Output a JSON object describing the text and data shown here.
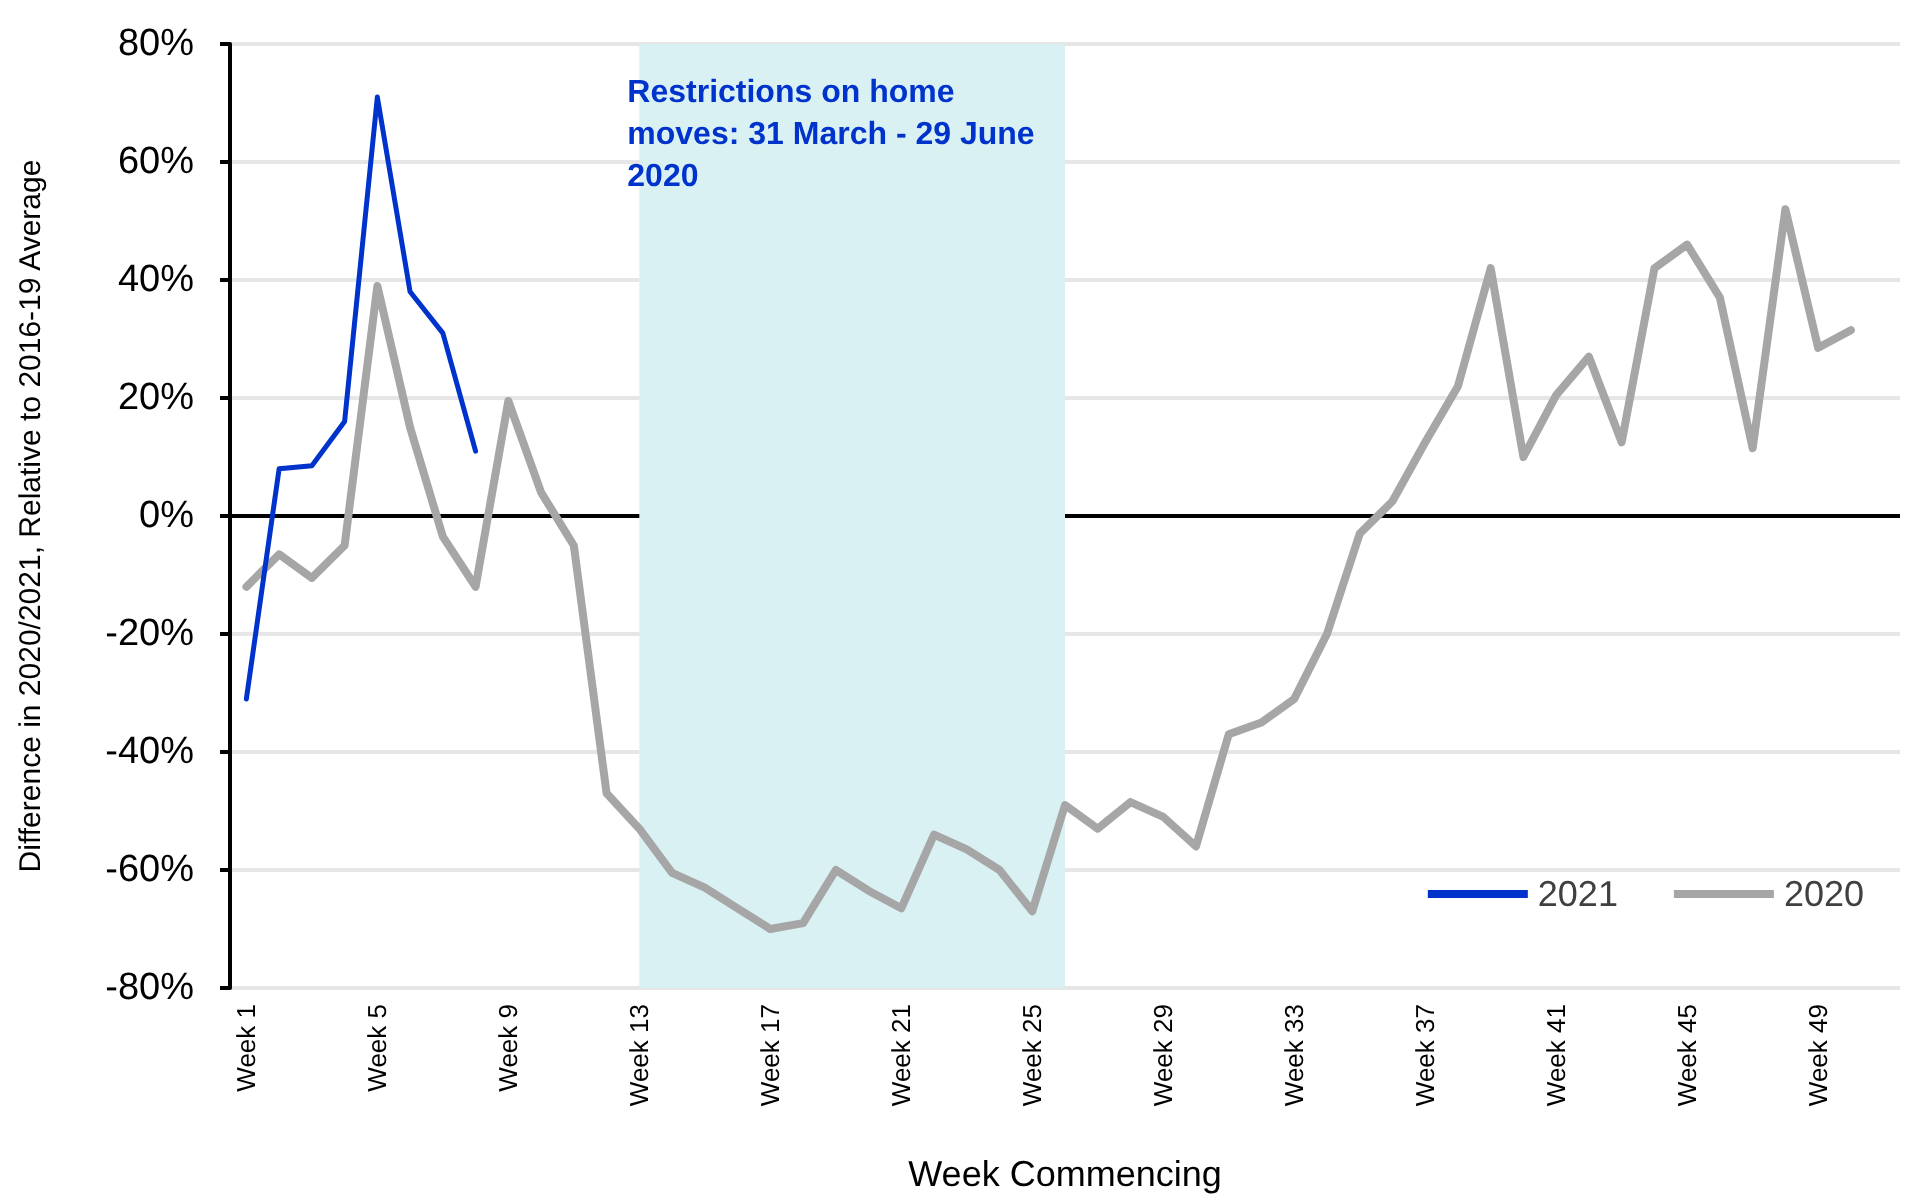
{
  "chart_data": {
    "type": "line",
    "xlabel": "Week Commencing",
    "ylabel": "Difference in 2020/2021, Relative to 2016-19 Average",
    "categories": [
      "Week 1",
      null,
      null,
      null,
      "Week 5",
      null,
      null,
      null,
      "Week 9",
      null,
      null,
      null,
      "Week 13",
      null,
      null,
      null,
      "Week 17",
      null,
      null,
      null,
      "Week 21",
      null,
      null,
      null,
      "Week 25",
      null,
      null,
      null,
      "Week 29",
      null,
      null,
      null,
      "Week 33",
      null,
      null,
      null,
      "Week 37",
      null,
      null,
      null,
      "Week 41",
      null,
      null,
      null,
      "Week 45",
      null,
      null,
      null,
      "Week 49",
      null,
      null
    ],
    "series": [
      {
        "name": "2021",
        "color": "#0033cc",
        "values": [
          -31,
          8,
          8.5,
          16,
          71,
          38,
          31,
          11,
          null,
          null,
          null,
          null,
          null,
          null,
          null,
          null,
          null,
          null,
          null,
          null,
          null,
          null,
          null,
          null,
          null,
          null,
          null,
          null,
          null,
          null,
          null,
          null,
          null,
          null,
          null,
          null,
          null,
          null,
          null,
          null,
          null,
          null,
          null,
          null,
          null,
          null,
          null,
          null,
          null,
          null,
          null
        ]
      },
      {
        "name": "2020",
        "color": "#a6a6a6",
        "values": [
          -12,
          -6.5,
          -10.5,
          -5,
          39,
          15,
          -3.5,
          -12,
          19.5,
          4,
          -5,
          -47,
          -53,
          -60.5,
          -63,
          -66.5,
          -70,
          -69,
          -60,
          -63.5,
          -66.5,
          -54,
          -56.5,
          -60,
          -67,
          -49,
          -53,
          -48.5,
          -51,
          -56,
          -37,
          -35,
          -31,
          -20,
          -3,
          2.5,
          12.5,
          22,
          42,
          10,
          20.5,
          27,
          12.5,
          42,
          46,
          37,
          11.5,
          52,
          28.5,
          31.5,
          null
        ]
      }
    ],
    "ylim": [
      -80,
      80
    ],
    "yticks": [
      {
        "value": -80,
        "label": "-80%"
      },
      {
        "value": -60,
        "label": "-60%"
      },
      {
        "value": -40,
        "label": "-40%"
      },
      {
        "value": -20,
        "label": "-20%"
      },
      {
        "value": 0,
        "label": "0%"
      },
      {
        "value": 20,
        "label": "20%"
      },
      {
        "value": 40,
        "label": "40%"
      },
      {
        "value": 60,
        "label": "60%"
      },
      {
        "value": 80,
        "label": "80%"
      }
    ],
    "annotations": [
      "Restrictions on home moves: 31 March - 29 June 2020"
    ],
    "grid": "y",
    "legend": "bottom right",
    "marker": "none",
    "line_style": "solid"
  }
}
